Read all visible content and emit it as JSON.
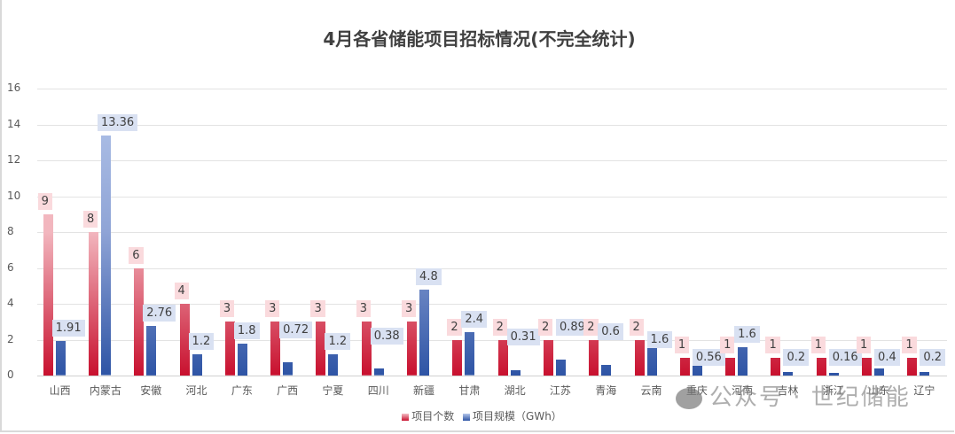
{
  "chart_data": {
    "type": "bar",
    "title": "4月各省储能项目招标情况(不完全统计)",
    "xlabel": "",
    "ylabel": "",
    "ylim": [
      0,
      16
    ],
    "yticks": [
      0,
      2,
      4,
      6,
      8,
      10,
      12,
      14,
      16
    ],
    "grid": true,
    "legend_position": "bottom",
    "categories": [
      "山西",
      "内蒙古",
      "安徽",
      "河北",
      "广东",
      "广西",
      "宁夏",
      "四川",
      "新疆",
      "甘肃",
      "湖北",
      "江苏",
      "青海",
      "云南",
      "重庆",
      "河南",
      "吉林",
      "浙江",
      "山东",
      "辽宁"
    ],
    "series": [
      {
        "name": "项目个数",
        "color": "#c8102e",
        "values": [
          9,
          8,
          6,
          4,
          3,
          3,
          3,
          3,
          3,
          2,
          2,
          2,
          2,
          2,
          1,
          1,
          1,
          1,
          1,
          1
        ]
      },
      {
        "name": "项目规模（GWh）",
        "color": "#2e54a5",
        "values": [
          1.91,
          13.36,
          2.76,
          1.2,
          1.8,
          0.72,
          1.2,
          0.38,
          4.8,
          2.4,
          0.31,
          0.89,
          0.6,
          1.6,
          0.56,
          1.6,
          0.2,
          0.16,
          0.4,
          0.2
        ]
      }
    ]
  },
  "title": "4月各省储能项目招标情况(不完全统计)",
  "legend": {
    "count": "项目个数",
    "gwh": "项目规模（GWh）"
  },
  "watermark": "公众号 · 世纪储能"
}
